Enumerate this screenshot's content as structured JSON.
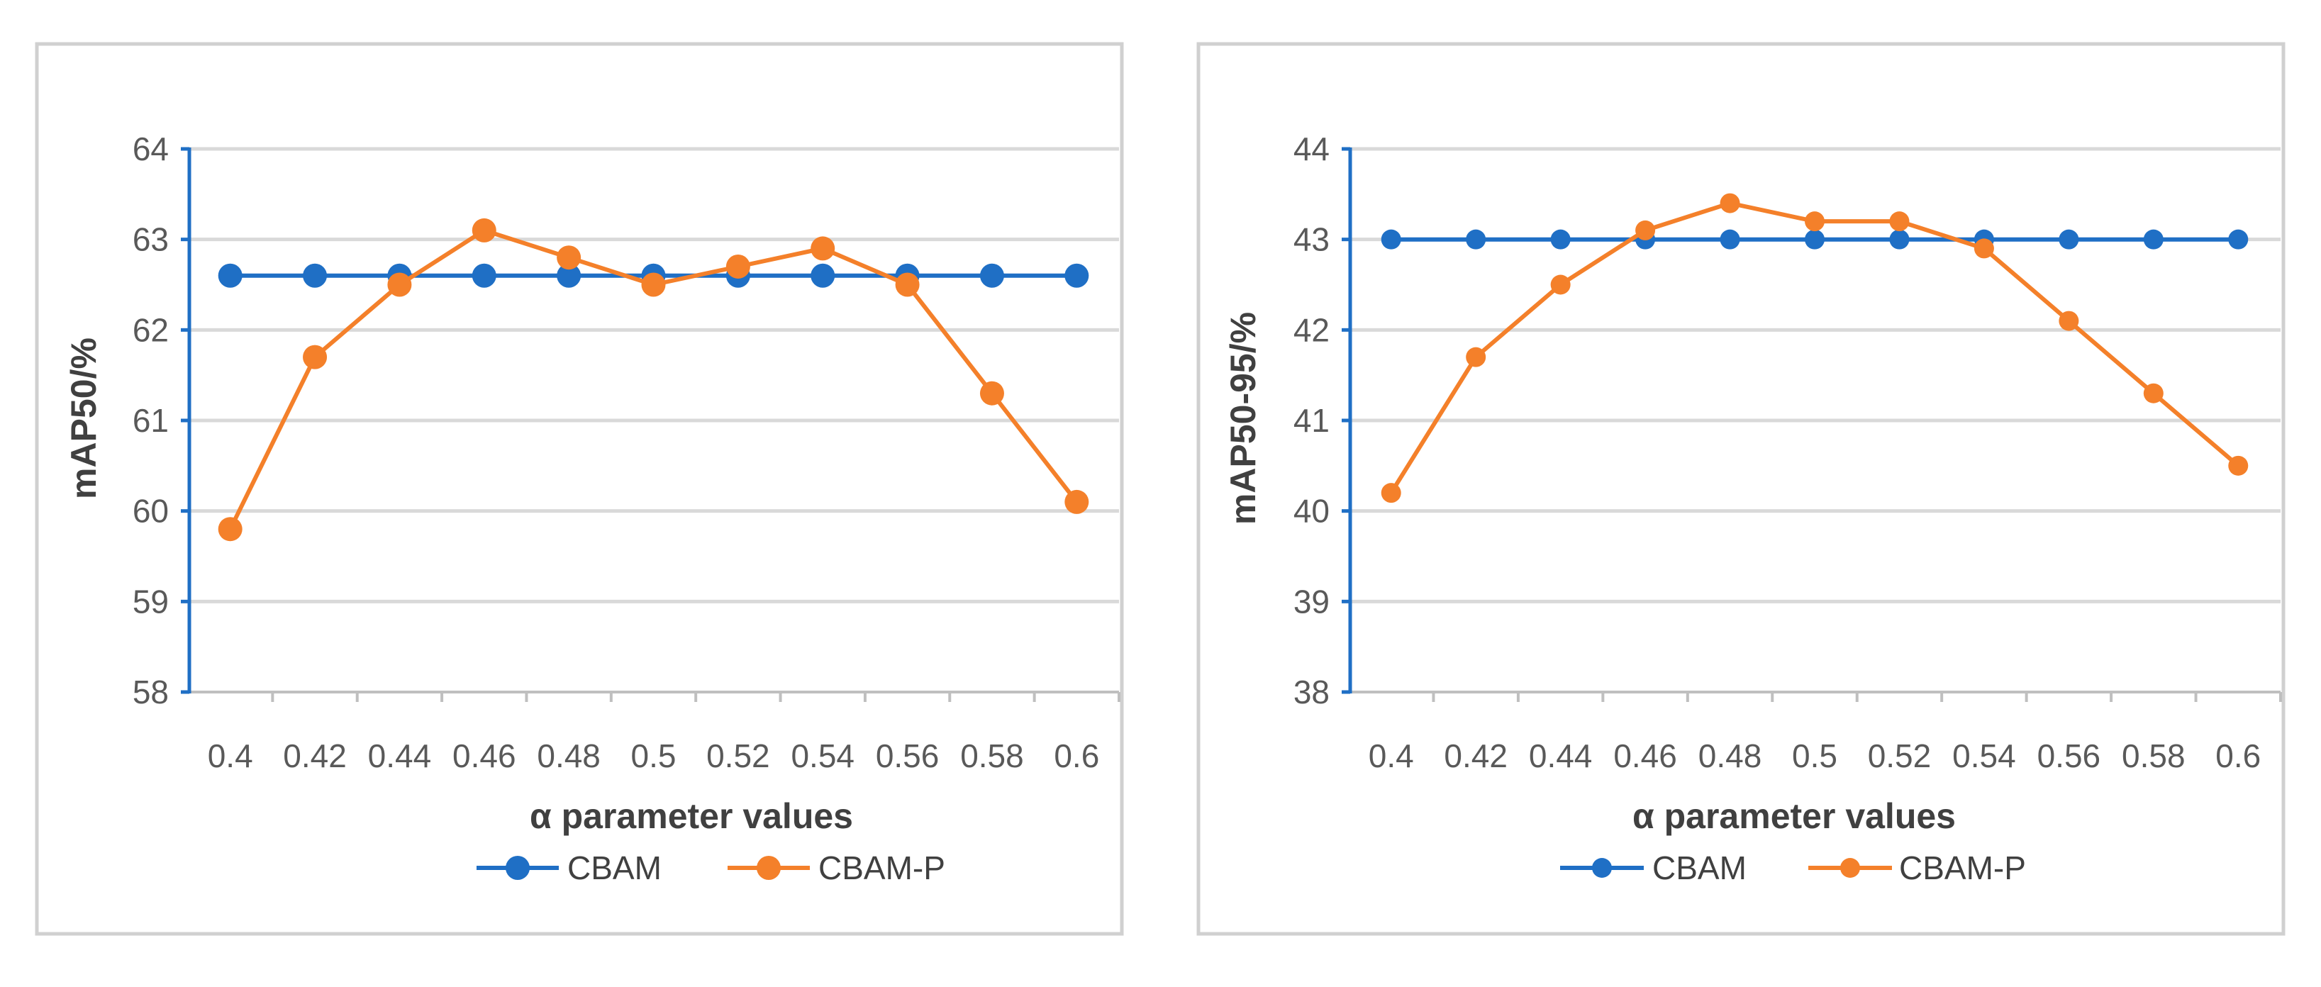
{
  "colors": {
    "cbam": "#1f6fc5",
    "cbam_p": "#f4802a"
  },
  "chart_data": [
    {
      "type": "line",
      "title": "",
      "xlabel": "α parameter values",
      "ylabel": "mAP50/%",
      "x": [
        "0.4",
        "0.42",
        "0.44",
        "0.46",
        "0.48",
        "0.5",
        "0.52",
        "0.54",
        "0.56",
        "0.58",
        "0.6"
      ],
      "ylim": [
        58,
        64
      ],
      "yticks": [
        "58",
        "59",
        "60",
        "61",
        "62",
        "63",
        "64"
      ],
      "grid": true,
      "legend": "bottom",
      "series": [
        {
          "name": "CBAM",
          "color": "#1f6fc5",
          "values": [
            62.6,
            62.6,
            62.6,
            62.6,
            62.6,
            62.6,
            62.6,
            62.6,
            62.6,
            62.6,
            62.6
          ]
        },
        {
          "name": "CBAM-P",
          "color": "#f4802a",
          "values": [
            59.8,
            61.7,
            62.5,
            63.1,
            62.8,
            62.5,
            62.7,
            62.9,
            62.5,
            61.3,
            60.1
          ]
        }
      ]
    },
    {
      "type": "line",
      "title": "",
      "xlabel": "α parameter values",
      "ylabel": "mAP50-95/%",
      "x": [
        "0.4",
        "0.42",
        "0.44",
        "0.46",
        "0.48",
        "0.5",
        "0.52",
        "0.54",
        "0.56",
        "0.58",
        "0.6"
      ],
      "ylim": [
        38,
        44
      ],
      "yticks": [
        "38",
        "39",
        "40",
        "41",
        "42",
        "43",
        "44"
      ],
      "grid": true,
      "legend": "bottom",
      "series": [
        {
          "name": "CBAM",
          "color": "#1f6fc5",
          "values": [
            43,
            43,
            43,
            43,
            43,
            43,
            43,
            43,
            43,
            43,
            43
          ]
        },
        {
          "name": "CBAM-P",
          "color": "#f4802a",
          "values": [
            40.2,
            41.7,
            42.5,
            43.1,
            43.4,
            43.2,
            43.2,
            42.9,
            42.1,
            41.3,
            40.5
          ]
        }
      ]
    }
  ]
}
